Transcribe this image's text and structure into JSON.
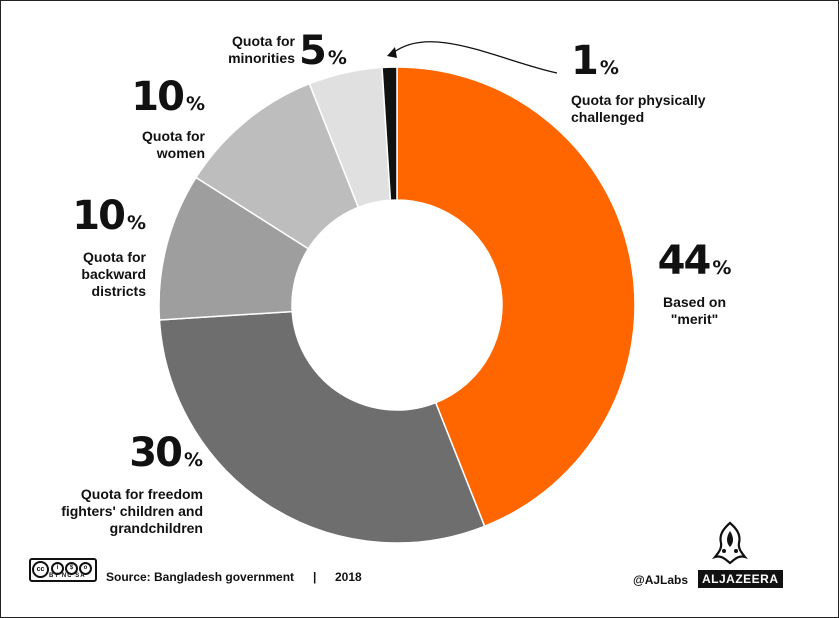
{
  "chart_data": {
    "type": "pie",
    "categories": [
      "Based on \"merit\"",
      "Quota for freedom fighters' children and grandchildren",
      "Quota for backward districts",
      "Quota for women",
      "Quota for minorities",
      "Quota for physically challenged"
    ],
    "values": [
      44,
      30,
      10,
      10,
      5,
      1
    ],
    "colors": [
      "#ff6600",
      "#6e6e6e",
      "#9e9e9e",
      "#bdbdbd",
      "#e0e0e0",
      "#111111"
    ],
    "unit": "%",
    "donut": true
  },
  "labels": {
    "merit": {
      "pct": "44",
      "sign": "%",
      "line1": "Based on",
      "line2": "\"merit\""
    },
    "freedom": {
      "pct": "30",
      "sign": "%",
      "line1": "Quota for freedom",
      "line2": "fighters' children and",
      "line3": "grandchildren"
    },
    "districts": {
      "pct": "10",
      "sign": "%",
      "line1": "Quota for",
      "line2": "backward",
      "line3": "districts"
    },
    "women": {
      "pct": "10",
      "sign": "%",
      "line1": "Quota for",
      "line2": "women"
    },
    "minorities": {
      "pct": "5",
      "sign": "%",
      "line1": "Quota for",
      "line2": "minorities"
    },
    "physical": {
      "pct": "1",
      "sign": "%",
      "line1": "Quota for physically",
      "line2": "challenged"
    }
  },
  "footer": {
    "source": "Source:  Bangladesh government",
    "separator": "|",
    "year": "2018",
    "handle": "@AJLabs",
    "brand": "ALJAZEERA",
    "license_badges": "BY  NC  SA"
  }
}
